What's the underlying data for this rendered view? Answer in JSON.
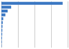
{
  "chart_data": {
    "type": "bar",
    "orientation": "horizontal",
    "categories": [
      null,
      null,
      null,
      null,
      null,
      null,
      null,
      null,
      null,
      null,
      null,
      null
    ],
    "values": [
      3700000,
      590000,
      380000,
      240000,
      110000,
      80000,
      65000,
      55000,
      48000,
      38000,
      28000,
      18000
    ],
    "color": "#3b78c3",
    "xlim": [
      0,
      4000000
    ],
    "xticks": [
      0,
      1000000,
      2000000,
      3000000,
      4000000
    ],
    "grid": true,
    "tick_labels": false
  }
}
